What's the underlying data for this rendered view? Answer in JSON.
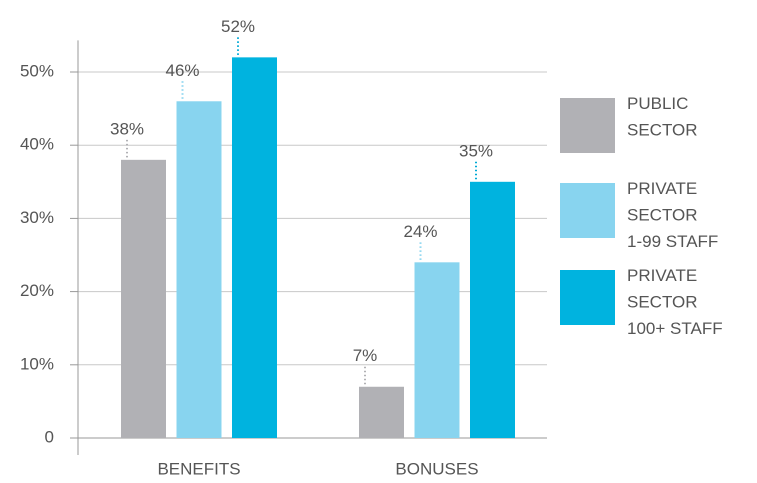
{
  "chart_data": {
    "type": "bar",
    "categories": [
      "BENEFITS",
      "BONUSES"
    ],
    "series": [
      {
        "name": "PUBLIC\nSECTOR",
        "color": "#b1b1b5",
        "label_color": "#b1b1b5",
        "values": [
          38,
          7
        ],
        "value_labels": [
          "38%",
          "7%"
        ]
      },
      {
        "name": "PRIVATE\nSECTOR\n1-99 STAFF",
        "color": "#88d4ef",
        "label_color": "#88d4ef",
        "values": [
          46,
          24
        ],
        "value_labels": [
          "46%",
          "24%"
        ]
      },
      {
        "name": "PRIVATE\nSECTOR\n100+ STAFF",
        "color": "#00b3df",
        "label_color": "#00a9d6",
        "values": [
          52,
          35
        ],
        "value_labels": [
          "52%",
          "35%"
        ]
      }
    ],
    "ylim": [
      0,
      55
    ],
    "yticks": [
      {
        "value": 0,
        "label": "0"
      },
      {
        "value": 10,
        "label": "10%"
      },
      {
        "value": 20,
        "label": "20%"
      },
      {
        "value": 30,
        "label": "30%"
      },
      {
        "value": 40,
        "label": "40%"
      },
      {
        "value": 50,
        "label": "50%"
      }
    ],
    "grid": true
  }
}
